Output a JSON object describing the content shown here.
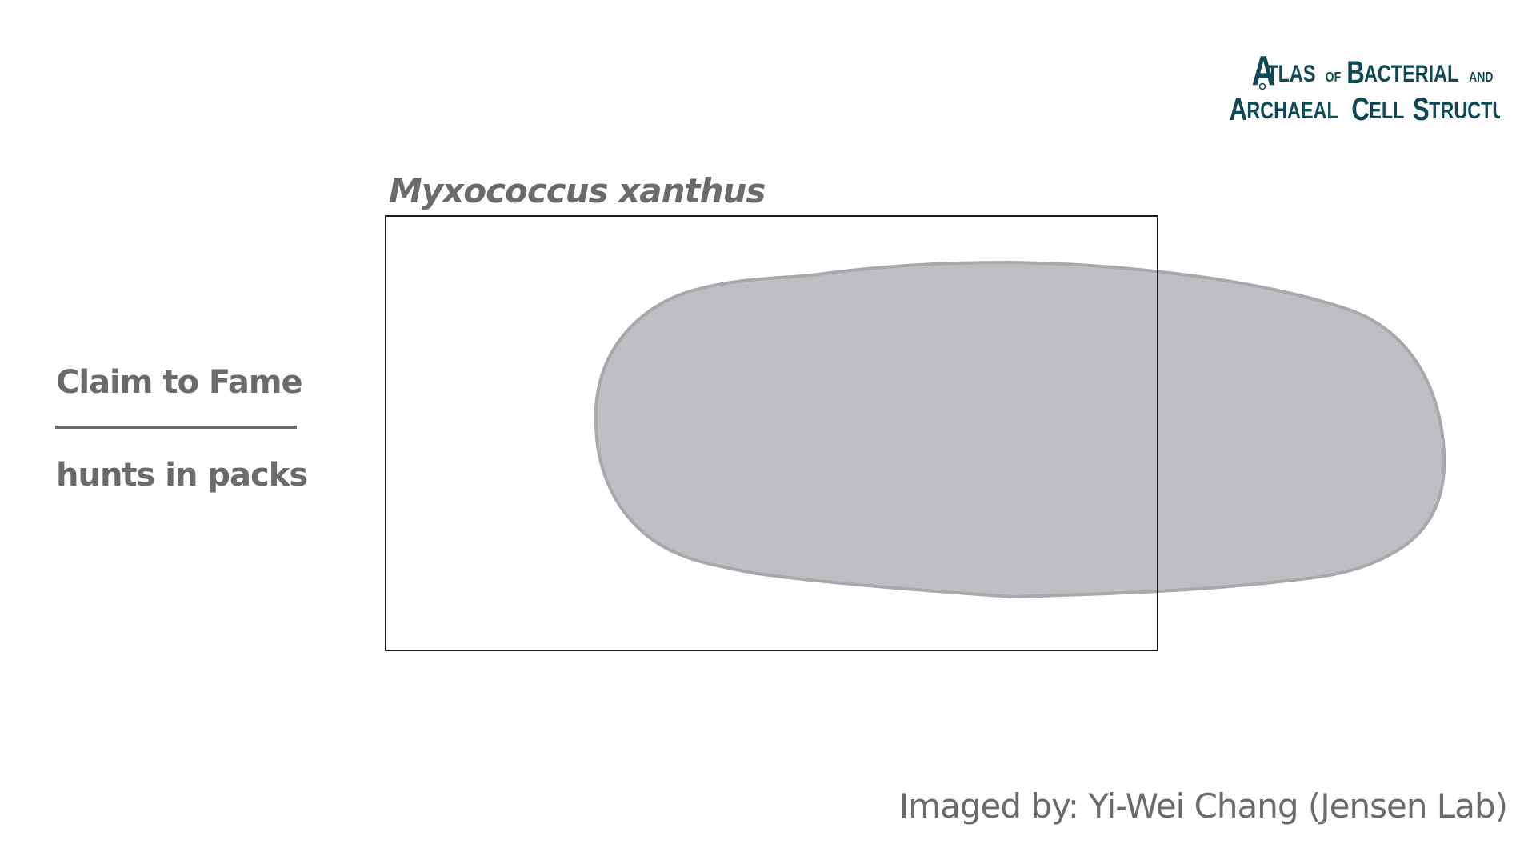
{
  "logo": {
    "line1": "Atlas of Bacterial and",
    "line2": "Archaeal Cell Structure",
    "color": "#0e4a55"
  },
  "species": {
    "name": "Myxococcus xanthus"
  },
  "claim": {
    "heading": "Claim to Fame",
    "text": "hunts in packs"
  },
  "credit": {
    "text": "Imaged by: Yi-Wei Chang (Jensen Lab)"
  },
  "colors": {
    "text": "#6b6b6e",
    "cell_fill": "#bebfc3",
    "cell_stroke": "#a8a9ad",
    "frame": "#1a1a1a"
  }
}
